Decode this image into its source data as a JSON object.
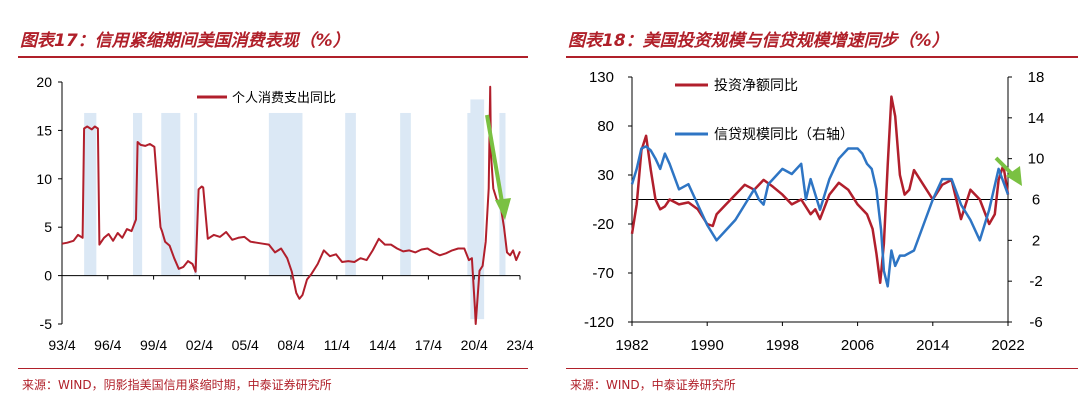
{
  "left_panel": {
    "title": "图表17：信用紧缩期间美国消费表现（%）",
    "source": "来源：WIND，阴影指美国信用紧缩时期，中泰证券研究所"
  },
  "right_panel": {
    "title": "图表18：美国投资规模与信贷规模增速同步（%）",
    "source": "来源：WIND，中泰证券研究所"
  },
  "colors": {
    "accent": "#b0202a",
    "series_red": "#b11f2c",
    "series_blue": "#2e75c4",
    "shade": "#dbe8f5",
    "arrow": "#7ac142"
  },
  "chart_data": [
    {
      "type": "line",
      "title": "",
      "xlabel": "",
      "ylabel": "",
      "ylim": [
        -5,
        20
      ],
      "y_ticks": [
        -5,
        0,
        5,
        10,
        15,
        20
      ],
      "x_tick_labels": [
        "93/4",
        "96/4",
        "99/4",
        "02/4",
        "05/4",
        "08/4",
        "11/4",
        "14/4",
        "17/4",
        "20/4",
        "23/4"
      ],
      "x_range_years": [
        1993.25,
        2023.25
      ],
      "legend": "top-left",
      "legend_entries": [
        "个人消费支出同比"
      ],
      "shaded_periods": [
        [
          1994.7,
          1995.5
        ],
        [
          1997.9,
          1998.5
        ],
        [
          1999.75,
          2001.0
        ],
        [
          2001.9,
          2002.1
        ],
        [
          2006.8,
          2009.0
        ],
        [
          2011.8,
          2012.5
        ],
        [
          2015.4,
          2016.1
        ],
        [
          2019.8,
          2020.5
        ],
        [
          2021.9,
          2022.3
        ]
      ],
      "series": [
        {
          "name": "个人消费支出同比",
          "x": [
            1993.25,
            1993.6,
            1994.0,
            1994.3,
            1994.6,
            1994.7,
            1994.9,
            1995.2,
            1995.4,
            1995.6,
            1995.7,
            1996.0,
            1996.3,
            1996.6,
            1996.9,
            1997.2,
            1997.5,
            1997.8,
            1998.1,
            1998.2,
            1998.4,
            1998.7,
            1999.0,
            1999.3,
            1999.7,
            1999.8,
            2000.0,
            2000.3,
            2000.6,
            2000.9,
            2001.2,
            2001.5,
            2001.8,
            2002.0,
            2002.2,
            2002.4,
            2002.5,
            2002.8,
            2003.2,
            2003.6,
            2004.0,
            2004.4,
            2004.8,
            2005.2,
            2005.6,
            2006.0,
            2006.4,
            2006.8,
            2007.2,
            2007.6,
            2008.0,
            2008.3,
            2008.6,
            2008.8,
            2009.0,
            2009.3,
            2009.6,
            2010.0,
            2010.4,
            2010.8,
            2011.2,
            2011.6,
            2012.0,
            2012.4,
            2012.8,
            2013.2,
            2013.6,
            2014.0,
            2014.4,
            2014.8,
            2015.2,
            2015.6,
            2016.0,
            2016.4,
            2016.8,
            2017.2,
            2017.6,
            2018.0,
            2018.4,
            2018.8,
            2019.2,
            2019.6,
            2019.9,
            2020.1,
            2020.3,
            2020.35,
            2020.6,
            2020.8,
            2021.0,
            2021.2,
            2021.3,
            2021.35,
            2021.5,
            2021.7,
            2021.9,
            2022.0,
            2022.2,
            2022.4,
            2022.6,
            2022.8,
            2023.0,
            2023.25
          ],
          "values": [
            3.3,
            3.4,
            3.6,
            4.2,
            3.9,
            15.2,
            15.4,
            15.1,
            15.4,
            15.2,
            3.2,
            3.9,
            4.3,
            3.6,
            4.4,
            3.9,
            4.8,
            4.6,
            5.8,
            13.8,
            13.5,
            13.4,
            13.6,
            13.3,
            5.0,
            4.6,
            3.5,
            3.1,
            1.8,
            0.7,
            0.9,
            1.5,
            1.2,
            0.4,
            8.9,
            9.2,
            9.1,
            3.8,
            4.2,
            4.0,
            4.5,
            3.7,
            3.9,
            4.0,
            3.5,
            3.4,
            3.3,
            3.2,
            2.4,
            2.8,
            1.8,
            0.4,
            -1.8,
            -2.4,
            -2.0,
            -0.4,
            0.2,
            1.2,
            2.6,
            2.0,
            2.2,
            1.4,
            1.5,
            1.4,
            1.8,
            1.6,
            2.6,
            3.8,
            3.2,
            3.2,
            2.8,
            2.5,
            2.6,
            2.4,
            2.7,
            2.8,
            2.4,
            2.1,
            2.3,
            2.6,
            2.8,
            2.8,
            1.6,
            1.8,
            -3.5,
            -5.0,
            0.5,
            1.0,
            3.5,
            9.0,
            19.5,
            12.5,
            9.0,
            8.0,
            7.2,
            7.0,
            5.0,
            2.4,
            2.1,
            2.6,
            1.6,
            2.5
          ]
        }
      ]
    },
    {
      "type": "line",
      "title": "",
      "xlabel": "",
      "ylabel": "",
      "ylim_left": [
        -120,
        130
      ],
      "ylim_right": [
        -6,
        18
      ],
      "y_ticks_left": [
        -120,
        -70,
        -20,
        30,
        80,
        130
      ],
      "y_ticks_right": [
        -6,
        -2,
        2,
        6,
        10,
        14,
        18
      ],
      "x_tick_labels": [
        "1982",
        "1990",
        "1998",
        "2006",
        "2014",
        "2022"
      ],
      "x_range_years": [
        1982,
        2022
      ],
      "legend": "top-left",
      "legend_entries": [
        "投资净额同比",
        "信贷规模同比（右轴）"
      ],
      "series": [
        {
          "name": "投资净额同比",
          "axis": "left",
          "x": [
            1982,
            1982.5,
            1983,
            1983.5,
            1984,
            1984.5,
            1985,
            1985.5,
            1986,
            1987,
            1988,
            1989,
            1990,
            1990.6,
            1991,
            1992,
            1993,
            1994,
            1995,
            1996,
            1997,
            1998,
            1999,
            2000,
            2001,
            2001.5,
            2002,
            2003,
            2004,
            2005,
            2006,
            2007,
            2007.6,
            2008,
            2008.4,
            2008.8,
            2009.2,
            2009.6,
            2010,
            2010.5,
            2011,
            2011.5,
            2012,
            2013,
            2014,
            2015,
            2016,
            2017,
            2018,
            2019,
            2020,
            2020.6,
            2021,
            2021.5,
            2022
          ],
          "values": [
            -30,
            0,
            55,
            70,
            35,
            5,
            -5,
            -2,
            5,
            0,
            2,
            -5,
            -20,
            -22,
            -10,
            0,
            10,
            20,
            15,
            25,
            18,
            10,
            0,
            5,
            -10,
            -5,
            -15,
            10,
            22,
            15,
            0,
            -10,
            -25,
            -50,
            -80,
            -40,
            40,
            110,
            90,
            30,
            10,
            15,
            35,
            20,
            5,
            20,
            25,
            -15,
            15,
            5,
            -20,
            -10,
            25,
            40,
            10
          ]
        },
        {
          "name": "信贷规模同比（右轴）",
          "axis": "right",
          "x": [
            1982,
            1982.5,
            1983,
            1983.5,
            1984,
            1984.5,
            1985,
            1985.5,
            1986,
            1987,
            1988,
            1989,
            1990,
            1991,
            1992,
            1993,
            1994,
            1995,
            1995.5,
            1996,
            1996.5,
            1997,
            1998,
            1999,
            2000,
            2000.5,
            2001,
            2002,
            2003,
            2004,
            2005,
            2006,
            2006.5,
            2007,
            2007.5,
            2008,
            2008.5,
            2008.8,
            2009.2,
            2009.6,
            2010,
            2010.5,
            2011,
            2012,
            2013,
            2014,
            2015,
            2016,
            2017,
            2018,
            2019,
            2020,
            2021,
            2022
          ],
          "values": [
            7.5,
            9.0,
            11.0,
            11.2,
            10.8,
            10.0,
            9.0,
            10.5,
            9.5,
            7.0,
            7.5,
            5.5,
            3.5,
            2.0,
            3.0,
            4.0,
            5.5,
            7.0,
            6.0,
            5.5,
            7.5,
            8.0,
            9.0,
            8.5,
            9.5,
            6.0,
            8.0,
            5.0,
            8.0,
            10.0,
            11.0,
            11.0,
            10.5,
            9.5,
            9.0,
            7.0,
            3.0,
            -1.0,
            -2.5,
            1.0,
            -0.5,
            0.5,
            0.5,
            1.0,
            3.5,
            6.0,
            8.0,
            8.0,
            5.5,
            4.0,
            2.0,
            5.0,
            9.0,
            6.5
          ]
        }
      ]
    }
  ]
}
